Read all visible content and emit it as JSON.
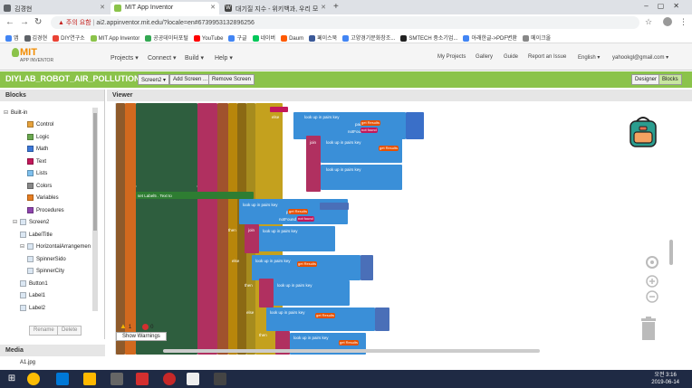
{
  "browser": {
    "tabs": [
      {
        "label": "김경현",
        "color": "#5f6368"
      },
      {
        "label": "MIT App Inventor",
        "color": "#8bc34a",
        "active": true
      },
      {
        "label": "대기질 지수 - 위키백과, 우리 모",
        "color": "#444"
      }
    ],
    "url_warning": "주의 요함",
    "url": "ai2.appinventor.mit.edu/?locale=en#6739953132896256",
    "bookmarks": [
      {
        "label": "앱",
        "color": "#4285f4"
      },
      {
        "label": "김경현",
        "color": "#5f6368"
      },
      {
        "label": "DIY연구소",
        "color": "#ea4335"
      },
      {
        "label": "MIT App Inventor",
        "color": "#8bc34a"
      },
      {
        "label": "공공데이터포털",
        "color": "#34a853"
      },
      {
        "label": "YouTube",
        "color": "#ff0000"
      },
      {
        "label": "구글",
        "color": "#4285f4"
      },
      {
        "label": "네이버",
        "color": "#03c75a"
      },
      {
        "label": "Daum",
        "color": "#ff5a00"
      },
      {
        "label": "페이스북",
        "color": "#3b5998"
      },
      {
        "label": "고양경기문화창조...",
        "color": "#4285f4"
      },
      {
        "label": "SMTECH 중소기업...",
        "color": "#222"
      },
      {
        "label": "아래한글->PDF변환",
        "color": "#4285f4"
      },
      {
        "label": "메이크올",
        "color": "#888"
      }
    ]
  },
  "app": {
    "logo_main": "MIT",
    "logo_sub": "APP INVENTOR",
    "menu": [
      "Projects ▾",
      "Connect ▾",
      "Build ▾",
      "Help ▾"
    ],
    "right_menu": [
      "My Projects",
      "Gallery",
      "Guide",
      "Report an Issue",
      "English ▾",
      "yahookgl@gmail.com ▾"
    ],
    "project_name": "DIYLAB_ROBOT_AIR_POLLUTION1",
    "screen_select": "Screen2 ▾",
    "add_screen": "Add Screen ...",
    "remove_screen": "Remove Screen",
    "designer": "Designer",
    "blocks": "Blocks"
  },
  "blocks_panel": {
    "title": "Blocks",
    "built_in": "Built-in",
    "categories": [
      {
        "label": "Control",
        "color": "#e6a23c"
      },
      {
        "label": "Logic",
        "color": "#6aa84f"
      },
      {
        "label": "Math",
        "color": "#3c78d8"
      },
      {
        "label": "Text",
        "color": "#c2185b"
      },
      {
        "label": "Lists",
        "color": "#7ec0ee"
      },
      {
        "label": "Colors",
        "color": "#888888"
      },
      {
        "label": "Variables",
        "color": "#e67e22"
      },
      {
        "label": "Procedures",
        "color": "#8e44ad"
      }
    ],
    "components": [
      {
        "label": "Screen2",
        "indent": 0
      },
      {
        "label": "LabelTitle",
        "indent": 1
      },
      {
        "label": "HorizontalArrangemen",
        "indent": 1
      },
      {
        "label": "SpinnerSido",
        "indent": 2
      },
      {
        "label": "SpinnerCity",
        "indent": 2
      },
      {
        "label": "Button1",
        "indent": 1
      },
      {
        "label": "Label1",
        "indent": 1
      },
      {
        "label": "Label2",
        "indent": 1
      }
    ],
    "rename": "Rename",
    "delete": "Delete"
  },
  "media": {
    "title": "Media",
    "item": "A1.jpg"
  },
  "viewer": {
    "title": "Viewer",
    "warn_count": "1",
    "error_count": "0",
    "show_warnings": "Show Warnings"
  },
  "workspace_text": {
    "else": "else",
    "then": "then",
    "join": "join",
    "lookup": "look up in pairs  key",
    "pairs": "pairs",
    "notfound": "notFound",
    "get_results": "get Results",
    "not_found": "not found",
    "set_label": "set Label5 . Text to",
    "item": "item"
  },
  "taskbar": {
    "time": "오전 3:16",
    "date": "2019-06-14"
  }
}
